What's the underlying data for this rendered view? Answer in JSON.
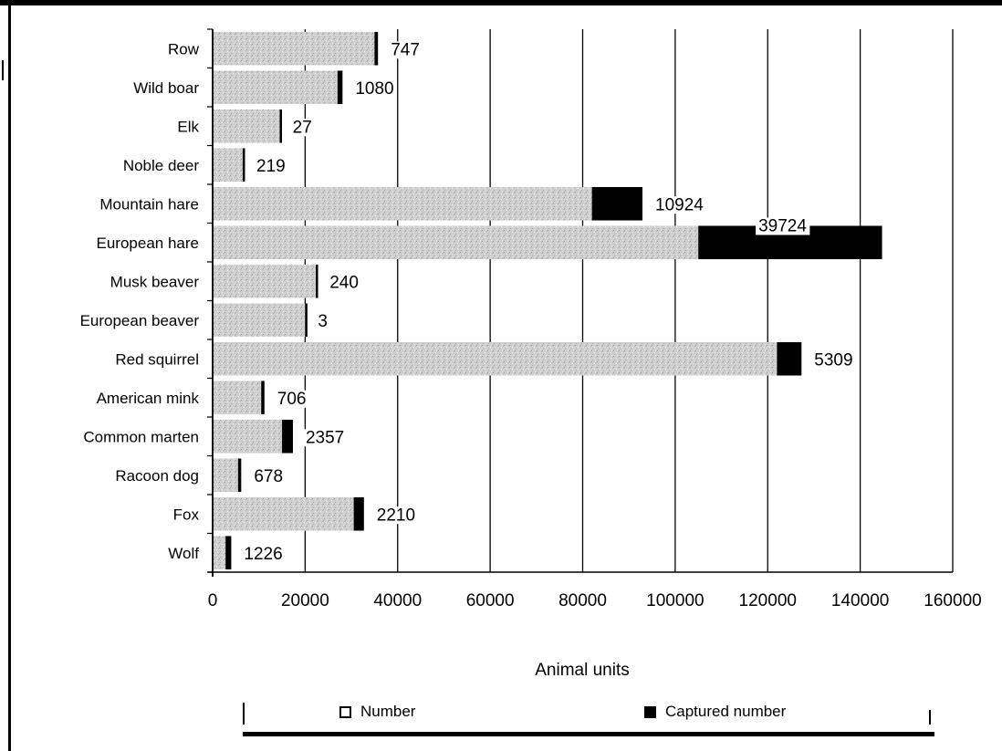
{
  "chart_data": {
    "type": "bar",
    "orientation": "horizontal",
    "stacked": true,
    "categories": [
      "Row",
      "Wild boar",
      "Elk",
      "Noble deer",
      "Mountain hare",
      "European hare",
      "Musk beaver",
      "European beaver",
      "Red squirrel",
      "American mink",
      "Common marten",
      "Racoon dog",
      "Fox",
      "Wolf"
    ],
    "series": [
      {
        "name": "Number",
        "color": "#cfcfcf",
        "values": [
          35000,
          27000,
          14500,
          6500,
          82000,
          105000,
          22300,
          20000,
          122000,
          10500,
          15000,
          5500,
          30500,
          2800
        ]
      },
      {
        "name": "Captured number",
        "color": "#000000",
        "values": [
          747,
          1080,
          27,
          219,
          10924,
          39724,
          240,
          3,
          5309,
          706,
          2357,
          678,
          2210,
          1226
        ]
      }
    ],
    "data_labels": [
      "747",
      "1080",
      "27",
      "219",
      "10924",
      "39724",
      "240",
      "3",
      "5309",
      "706",
      "2357",
      "678",
      "2210",
      "1226"
    ],
    "x_ticks": [
      "0",
      "20000",
      "40000",
      "60000",
      "80000",
      "100000",
      "120000",
      "140000",
      "160000"
    ],
    "xlim": [
      0,
      160000
    ],
    "xlabel": "Animal units",
    "ylabel": "",
    "title": "",
    "grid": "vertical",
    "legend_position": "bottom"
  },
  "legend": {
    "number_label": "Number",
    "captured_label": "Captured number"
  }
}
